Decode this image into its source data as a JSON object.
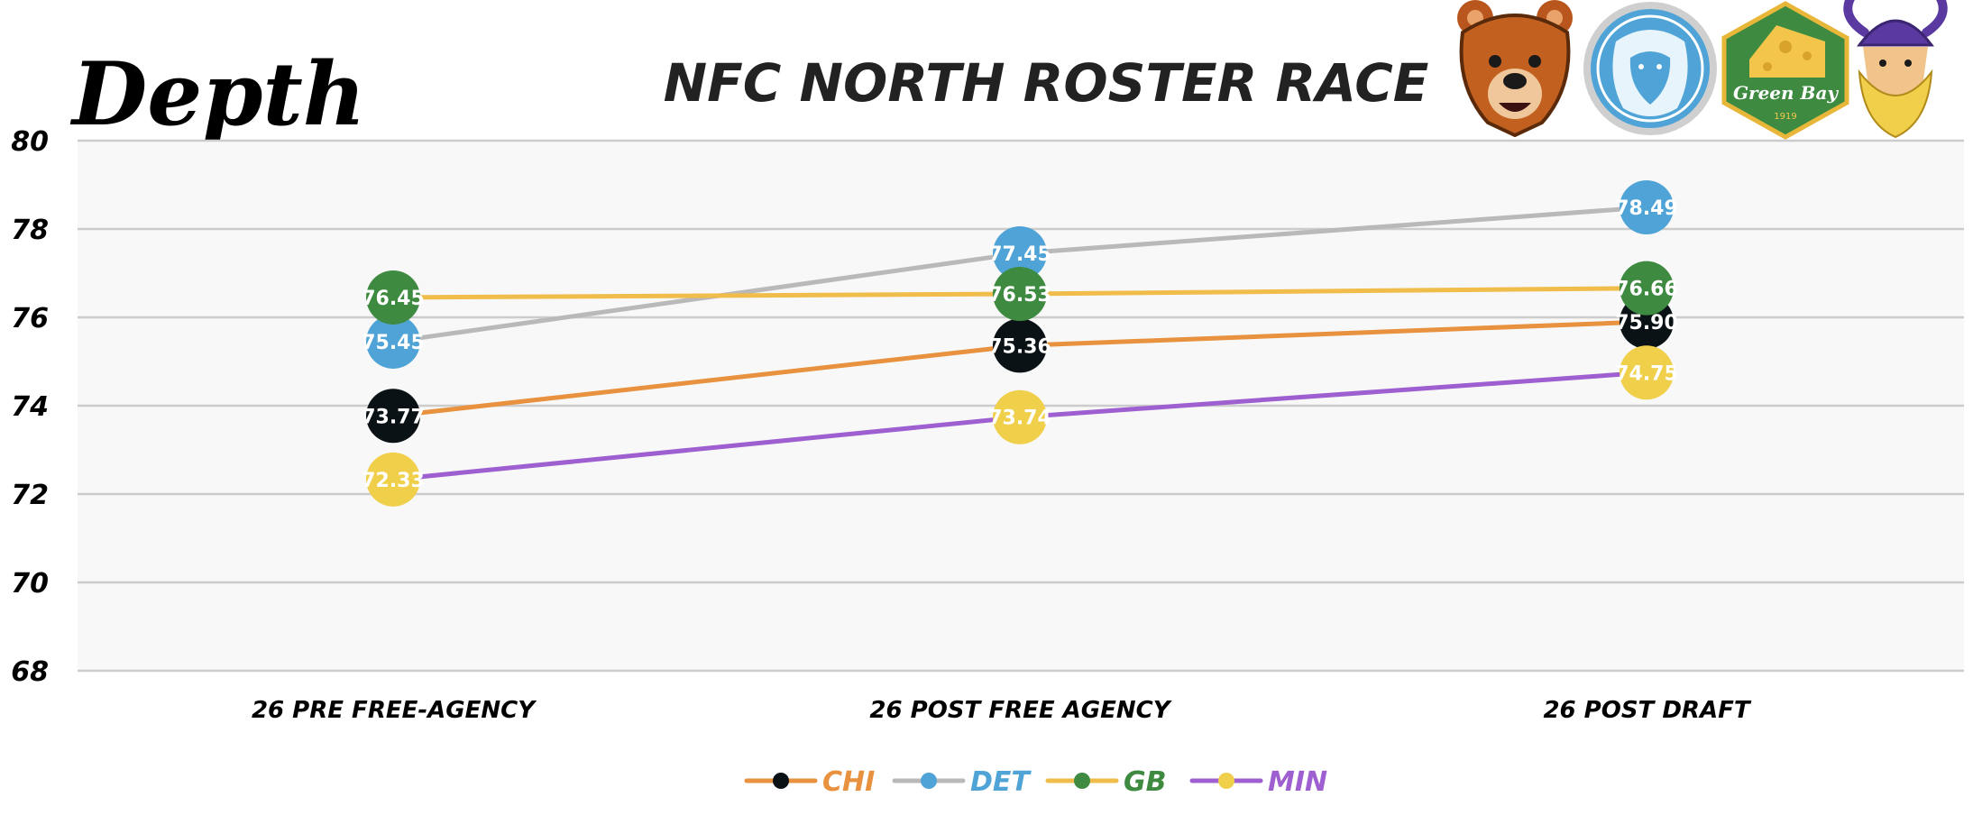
{
  "brand": {
    "name": "Depth"
  },
  "chart_data": {
    "type": "line",
    "title": "NFC NORTH ROSTER RACE",
    "xlabel": "",
    "ylabel": "",
    "categories": [
      "26 PRE FREE-AGENCY",
      "26 POST FREE AGENCY",
      "26 POST DRAFT"
    ],
    "ylim": [
      68,
      80
    ],
    "yticks": [
      68,
      70,
      72,
      74,
      76,
      78,
      80
    ],
    "grid": true,
    "legend_position": "bottom",
    "series": [
      {
        "name": "CHI",
        "values": [
          73.77,
          75.36,
          75.9
        ],
        "labels": [
          "73.77",
          "75.36",
          "75.90"
        ],
        "line_color": "#e8913e",
        "dot_color": "#0b1216",
        "text_color": "#ffffff"
      },
      {
        "name": "DET",
        "values": [
          75.45,
          77.45,
          78.49
        ],
        "labels": [
          "75.45",
          "77.45",
          "78.49"
        ],
        "line_color": "#b9b9b9",
        "dot_color": "#4fa3d6",
        "text_color": "#ffffff"
      },
      {
        "name": "GB",
        "values": [
          76.45,
          76.53,
          76.66
        ],
        "labels": [
          "76.45",
          "76.53",
          "76.66"
        ],
        "line_color": "#f0bc4a",
        "dot_color": "#3e8a40",
        "text_color": "#ffffff"
      },
      {
        "name": "MIN",
        "values": [
          72.33,
          73.74,
          74.75
        ],
        "labels": [
          "72.33",
          "73.74",
          "74.75"
        ],
        "line_color": "#9e5fd0",
        "dot_color": "#f0cf4a",
        "text_color": "#ffffff"
      }
    ]
  },
  "team_logos": [
    {
      "team": "CHI",
      "icon": "bear-icon"
    },
    {
      "team": "DET",
      "icon": "lion-icon"
    },
    {
      "team": "GB",
      "icon": "cheese-icon",
      "text": "Green Bay",
      "year": "1919"
    },
    {
      "team": "MIN",
      "icon": "viking-icon"
    }
  ]
}
